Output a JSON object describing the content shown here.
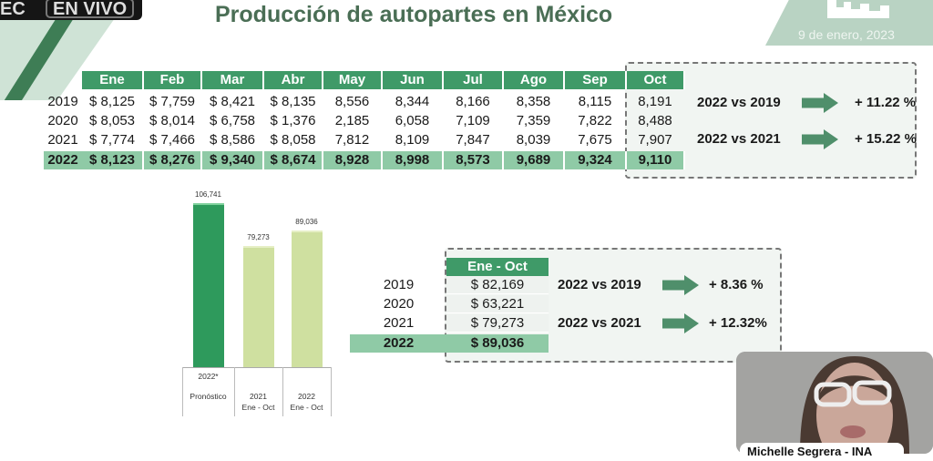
{
  "broadcast": {
    "rec_label": "EC",
    "live_label": "EN VIVO"
  },
  "slide": {
    "title": "Producción de autopartes en México",
    "date": "9 de enero, 2023",
    "monthly_table": {
      "headers": [
        "Ene",
        "Feb",
        "Mar",
        "Abr",
        "May",
        "Jun",
        "Jul",
        "Ago",
        "Sep",
        "Oct"
      ],
      "rows": [
        {
          "year": "2019",
          "values": [
            "$ 8,125",
            "$ 7,759",
            "$ 8,421",
            "$ 8,135",
            "8,556",
            "8,344",
            "8,166",
            "8,358",
            "8,115",
            "8,191"
          ]
        },
        {
          "year": "2020",
          "values": [
            "$ 8,053",
            "$ 8,014",
            "$ 6,758",
            "$ 1,376",
            "2,185",
            "6,058",
            "7,109",
            "7,359",
            "7,822",
            "8,488"
          ]
        },
        {
          "year": "2021",
          "values": [
            "$ 7,774",
            "$ 7,466",
            "$ 8,586",
            "$ 8,058",
            "7,812",
            "8,109",
            "7,847",
            "8,039",
            "7,675",
            "7,907"
          ]
        },
        {
          "year": "2022",
          "values": [
            "$ 8,123",
            "$ 8,276",
            "$ 9,340",
            "$ 8,674",
            "8,928",
            "8,998",
            "8,573",
            "9,689",
            "9,324",
            "9,110"
          ]
        }
      ],
      "comparisons": [
        {
          "label": "2022 vs 2019",
          "value": "+ 11.22 %"
        },
        {
          "label": "2022 vs 2021",
          "value": "+ 15.22 %"
        }
      ]
    },
    "ytd_table": {
      "header": "Ene - Oct",
      "rows": [
        {
          "year": "2019",
          "value": "$ 82,169"
        },
        {
          "year": "2020",
          "value": "$ 63,221"
        },
        {
          "year": "2021",
          "value": "$ 79,273"
        },
        {
          "year": "2022",
          "value": "$ 89,036"
        }
      ],
      "comparisons": [
        {
          "label": "2022 vs 2019",
          "value": "+ 8.36 %"
        },
        {
          "label": "2022 vs 2021",
          "value": "+ 12.32%"
        }
      ]
    }
  },
  "chart_data": {
    "type": "bar",
    "categories": [
      [
        "2022*",
        "Pronóstico"
      ],
      [
        "2021",
        "Ene - Oct"
      ],
      [
        "2022",
        "Ene - Oct"
      ]
    ],
    "values": [
      106741,
      79273,
      89036
    ],
    "data_labels": [
      "106,741",
      "79,273",
      "89,036"
    ],
    "colors": [
      "#2e9a5c",
      "#cfe0a0",
      "#cfe0a0"
    ],
    "ylim": [
      0,
      110000
    ]
  },
  "webcam": {
    "participant_name": "Michelle Segrera - INA"
  }
}
